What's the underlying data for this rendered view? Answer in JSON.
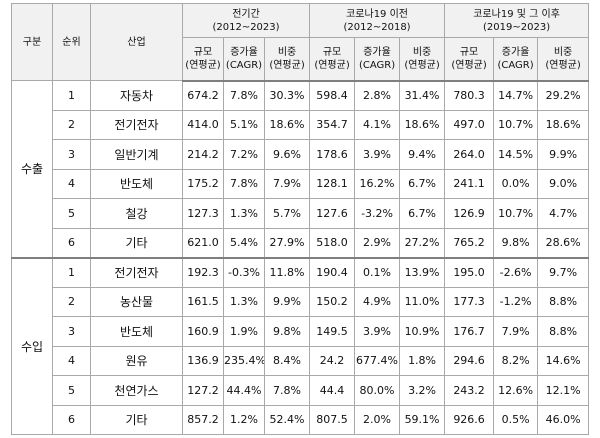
{
  "headers": {
    "group": "구분",
    "rank": "순위",
    "industry": "산업",
    "periods": [
      {
        "title": "전기간",
        "range": "(2012~2023)"
      },
      {
        "title": "코로나19 이전",
        "range": "(2012~2018)"
      },
      {
        "title": "코로나19 및 그 이후",
        "range": "(2019~2023)"
      }
    ],
    "sub": [
      {
        "l1": "규모",
        "l2": "(연평균)"
      },
      {
        "l1": "증가율",
        "l2": "(CAGR)"
      },
      {
        "l1": "비중",
        "l2": "(연평균)"
      }
    ]
  },
  "groups": [
    {
      "name": "수출",
      "rows": [
        {
          "rank": "1",
          "industry": "자동차",
          "values": [
            "674.2",
            "7.8%",
            "30.3%",
            "598.4",
            "2.8%",
            "31.4%",
            "780.3",
            "14.7%",
            "29.2%"
          ]
        },
        {
          "rank": "2",
          "industry": "전기전자",
          "values": [
            "414.0",
            "5.1%",
            "18.6%",
            "354.7",
            "4.1%",
            "18.6%",
            "497.0",
            "10.7%",
            "18.6%"
          ]
        },
        {
          "rank": "3",
          "industry": "일반기계",
          "values": [
            "214.2",
            "7.2%",
            "9.6%",
            "178.6",
            "3.9%",
            "9.4%",
            "264.0",
            "14.5%",
            "9.9%"
          ]
        },
        {
          "rank": "4",
          "industry": "반도체",
          "values": [
            "175.2",
            "7.8%",
            "7.9%",
            "128.1",
            "16.2%",
            "6.7%",
            "241.1",
            "0.0%",
            "9.0%"
          ]
        },
        {
          "rank": "5",
          "industry": "철강",
          "values": [
            "127.3",
            "1.3%",
            "5.7%",
            "127.6",
            "-3.2%",
            "6.7%",
            "126.9",
            "10.7%",
            "4.7%"
          ]
        },
        {
          "rank": "6",
          "industry": "기타",
          "values": [
            "621.0",
            "5.4%",
            "27.9%",
            "518.0",
            "2.9%",
            "27.2%",
            "765.2",
            "9.8%",
            "28.6%"
          ]
        }
      ]
    },
    {
      "name": "수입",
      "rows": [
        {
          "rank": "1",
          "industry": "전기전자",
          "values": [
            "192.3",
            "-0.3%",
            "11.8%",
            "190.4",
            "0.1%",
            "13.9%",
            "195.0",
            "-2.6%",
            "9.7%"
          ]
        },
        {
          "rank": "2",
          "industry": "농산물",
          "values": [
            "161.5",
            "1.3%",
            "9.9%",
            "150.2",
            "4.9%",
            "11.0%",
            "177.3",
            "-1.2%",
            "8.8%"
          ]
        },
        {
          "rank": "3",
          "industry": "반도체",
          "values": [
            "160.9",
            "1.9%",
            "9.8%",
            "149.5",
            "3.9%",
            "10.9%",
            "176.7",
            "7.9%",
            "8.8%"
          ]
        },
        {
          "rank": "4",
          "industry": "원유",
          "values": [
            "136.9",
            "235.4%",
            "8.4%",
            "24.2",
            "677.4%",
            "1.8%",
            "294.6",
            "8.2%",
            "14.6%"
          ]
        },
        {
          "rank": "5",
          "industry": "천연가스",
          "values": [
            "127.2",
            "44.4%",
            "7.8%",
            "44.4",
            "80.0%",
            "3.2%",
            "243.2",
            "12.6%",
            "12.1%"
          ]
        },
        {
          "rank": "6",
          "industry": "기타",
          "values": [
            "857.2",
            "1.2%",
            "52.4%",
            "807.5",
            "2.0%",
            "59.1%",
            "926.6",
            "0.5%",
            "46.0%"
          ]
        }
      ]
    }
  ]
}
